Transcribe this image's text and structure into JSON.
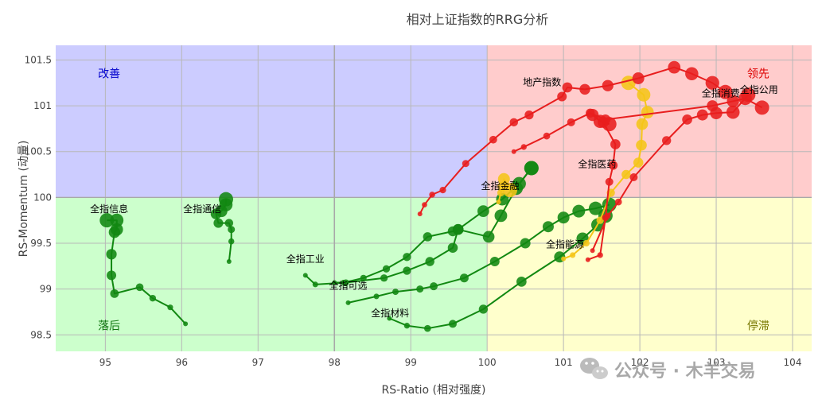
{
  "chart_data": {
    "type": "scatter",
    "title": "相对上证指数的RRG分析",
    "xlabel": "RS-Ratio (相对强度)",
    "ylabel": "RS-Momentum (动量)",
    "xlim": [
      94.35,
      104.25
    ],
    "ylim": [
      98.32,
      101.66
    ],
    "xticks": [
      "95",
      "96",
      "97",
      "98",
      "99",
      "100",
      "101",
      "102",
      "103",
      "104"
    ],
    "yticks": [
      "98.5",
      "99",
      "99.5",
      "100",
      "100.5",
      "101",
      "101.5"
    ],
    "grid": true,
    "center": {
      "x": 100,
      "y": 100
    },
    "quadrants": [
      {
        "name": "improving",
        "label": "改善",
        "color": "#ccccff",
        "text_color": "#0000cc"
      },
      {
        "name": "leading",
        "label": "领先",
        "color": "#ffcccc",
        "text_color": "#dd0000"
      },
      {
        "name": "lagging",
        "label": "落后",
        "color": "#ccffcc",
        "text_color": "#117711"
      },
      {
        "name": "weakening",
        "label": "停滞",
        "color": "#ffffcc",
        "text_color": "#777700"
      }
    ],
    "series": [
      {
        "name": "全指信息",
        "color": "#118811",
        "x": [
          96.05,
          95.85,
          95.62,
          95.45,
          95.12,
          95.08,
          95.08,
          95.12,
          95.15,
          95.15,
          95.02
        ],
        "y": [
          98.62,
          98.8,
          98.9,
          99.02,
          98.95,
          99.15,
          99.38,
          99.62,
          99.65,
          99.75,
          99.75
        ]
      },
      {
        "name": "全指通信",
        "color": "#118811",
        "x": [
          96.62,
          96.65,
          96.65,
          96.62,
          96.48,
          96.45,
          96.52,
          96.58,
          96.58
        ],
        "y": [
          99.3,
          99.52,
          99.65,
          99.72,
          99.72,
          99.82,
          99.85,
          99.92,
          99.98
        ]
      },
      {
        "name": "全指工业",
        "color": "#118811",
        "x": [
          97.62,
          97.75,
          98.15,
          98.65,
          98.95,
          99.25,
          99.55,
          99.62,
          99.95,
          100.2,
          100.42,
          100.58
        ],
        "y": [
          99.15,
          99.05,
          99.07,
          99.12,
          99.2,
          99.3,
          99.45,
          99.65,
          99.85,
          99.98,
          100.15,
          100.32
        ]
      },
      {
        "name": "全指可选",
        "color": "#118811",
        "x": [
          98.0,
          98.12,
          98.38,
          98.68,
          98.95,
          99.22,
          99.55,
          99.62,
          100.02,
          100.18,
          100.38,
          100.58
        ],
        "y": [
          99.07,
          99.07,
          99.12,
          99.22,
          99.35,
          99.57,
          99.63,
          99.65,
          99.57,
          99.8,
          100.1,
          100.32
        ]
      },
      {
        "name": "全指材料",
        "color": "#118811",
        "x": [
          98.18,
          98.55,
          98.8,
          99.12,
          99.3,
          99.7,
          100.1,
          100.5,
          100.8,
          101.0,
          101.2,
          101.42,
          101.6
        ],
        "y": [
          98.85,
          98.92,
          98.97,
          99.0,
          99.03,
          99.12,
          99.3,
          99.5,
          99.68,
          99.78,
          99.85,
          99.88,
          99.92
        ]
      },
      {
        "name": "全指能源",
        "color": "#118811",
        "x": [
          98.72,
          98.95,
          99.22,
          99.55,
          99.95,
          100.45,
          100.95,
          101.25,
          101.45,
          101.55
        ],
        "y": [
          98.68,
          98.6,
          98.57,
          98.62,
          98.78,
          99.08,
          99.35,
          99.55,
          99.7,
          99.8
        ]
      },
      {
        "name": "全指金融",
        "color": "#f5c518",
        "x": [
          100.15,
          100.18,
          100.2,
          100.22,
          100.3
        ],
        "y": [
          99.95,
          100.05,
          100.12,
          100.2,
          100.08
        ]
      },
      {
        "name": "全指能源",
        "color": "#f5c518",
        "x": [
          101.0,
          101.12,
          101.3,
          101.48,
          101.62,
          101.82,
          101.98,
          102.02,
          102.03,
          102.1,
          102.05,
          101.85
        ],
        "y": [
          99.33,
          99.37,
          99.5,
          99.75,
          100.05,
          100.25,
          100.38,
          100.57,
          100.8,
          100.93,
          101.12,
          101.25
        ]
      },
      {
        "name": "全指医药",
        "color": "#e81e1e",
        "x": [
          101.32,
          101.48,
          101.55,
          101.6,
          101.65,
          101.68,
          101.52,
          101.38,
          101.48,
          101.6
        ],
        "y": [
          99.32,
          99.37,
          99.78,
          100.17,
          100.35,
          100.58,
          100.82,
          100.9,
          100.83,
          100.8
        ]
      },
      {
        "name": "地产指数",
        "color": "#e81e1e",
        "x": [
          99.12,
          99.18,
          99.28,
          99.42,
          99.72,
          100.08,
          100.35,
          100.55,
          100.98,
          101.05,
          101.28,
          101.58,
          101.98,
          102.45,
          102.68,
          102.95,
          103.12
        ],
        "y": [
          99.82,
          99.92,
          100.03,
          100.08,
          100.37,
          100.63,
          100.82,
          100.9,
          101.1,
          101.2,
          101.18,
          101.22,
          101.3,
          101.42,
          101.35,
          101.25,
          101.15
        ]
      },
      {
        "name": "全指消费",
        "color": "#e81e1e",
        "x": [
          101.38,
          101.58,
          101.72,
          101.92,
          102.35,
          102.62,
          102.82,
          103.0,
          103.22,
          103.42
        ],
        "y": [
          99.42,
          99.8,
          99.95,
          100.22,
          100.62,
          100.85,
          100.9,
          100.92,
          100.93,
          101.12
        ]
      },
      {
        "name": "全指公用",
        "color": "#e81e1e",
        "x": [
          100.35,
          100.48,
          100.78,
          101.1,
          101.35,
          101.55,
          102.95,
          103.22,
          103.38,
          103.6
        ],
        "y": [
          100.5,
          100.55,
          100.67,
          100.82,
          100.92,
          100.85,
          101.0,
          101.05,
          101.08,
          100.98
        ]
      }
    ],
    "labels": [
      {
        "text": "全指信息",
        "x": 95.05,
        "y": 99.84
      },
      {
        "text": "全指通信",
        "x": 96.27,
        "y": 99.84
      },
      {
        "text": "全指工业",
        "x": 97.62,
        "y": 99.29
      },
      {
        "text": "全指可选",
        "x": 98.18,
        "y": 99.0
      },
      {
        "text": "全指材料",
        "x": 98.73,
        "y": 98.7
      },
      {
        "text": "全指金融",
        "x": 100.17,
        "y": 100.09
      },
      {
        "text": "全指能源",
        "x": 101.02,
        "y": 99.45
      },
      {
        "text": "全指医药",
        "x": 101.44,
        "y": 100.33
      },
      {
        "text": "地产指数",
        "x": 100.72,
        "y": 101.22
      },
      {
        "text": "全指消费",
        "x": 103.06,
        "y": 101.1
      },
      {
        "text": "全指公用",
        "x": 103.56,
        "y": 101.14
      }
    ]
  },
  "watermark": {
    "text": "公众号 · 木羊交易",
    "icon": "wechat-icon"
  }
}
